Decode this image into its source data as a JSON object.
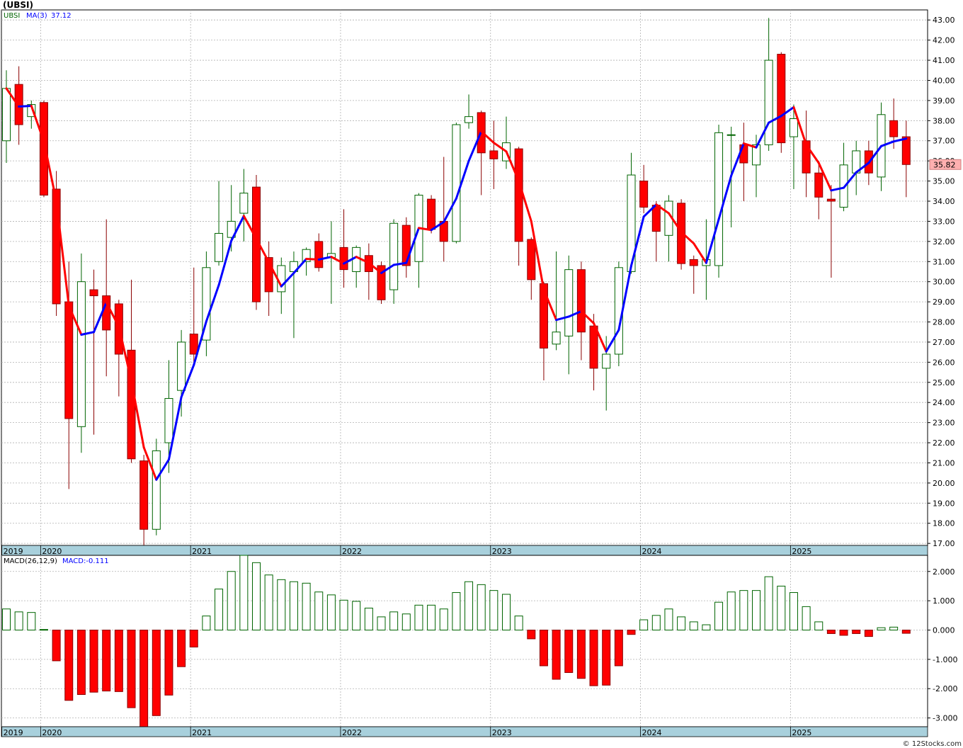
{
  "title": "(UBSI)",
  "footer": "© 12Stocks.com",
  "colors": {
    "up": "#006400",
    "down": "#ff0000",
    "ma_up": "#0000ff",
    "ma_down": "#ff0000",
    "grid": "#b0b0b0",
    "axis_band": "#a8d0dc"
  },
  "chart_data": [
    {
      "type": "candlestick",
      "legend": {
        "symbol": "UBSI",
        "ma_label": "MA(3)",
        "ma_value": "37.12"
      },
      "last_price_label": "35.82",
      "ylim": [
        16.9,
        43.5
      ],
      "y_ticks": [
        17,
        18,
        19,
        20,
        21,
        22,
        23,
        24,
        25,
        26,
        27,
        28,
        29,
        30,
        31,
        32,
        33,
        34,
        35,
        36,
        37,
        38,
        39,
        40,
        41,
        42,
        43
      ],
      "x_year_labels": [
        {
          "label": "2019",
          "index": -0.2
        },
        {
          "label": "2020",
          "index": 2.9
        },
        {
          "label": "2021",
          "index": 14.9
        },
        {
          "label": "2022",
          "index": 26.9
        },
        {
          "label": "2023",
          "index": 38.9
        },
        {
          "label": "2024",
          "index": 50.9
        },
        {
          "label": "2025",
          "index": 62.9
        }
      ],
      "candles": [
        {
          "o": 37.0,
          "h": 40.5,
          "l": 35.9,
          "c": 39.6
        },
        {
          "o": 39.8,
          "h": 40.7,
          "l": 36.8,
          "c": 37.8
        },
        {
          "o": 38.2,
          "h": 39.0,
          "l": 37.6,
          "c": 38.8
        },
        {
          "o": 38.9,
          "h": 39.0,
          "l": 34.2,
          "c": 34.3
        },
        {
          "o": 34.6,
          "h": 35.5,
          "l": 28.3,
          "c": 28.9
        },
        {
          "o": 29.0,
          "h": 31.0,
          "l": 19.7,
          "c": 23.2
        },
        {
          "o": 22.8,
          "h": 31.4,
          "l": 21.5,
          "c": 30.0
        },
        {
          "o": 29.6,
          "h": 30.6,
          "l": 22.4,
          "c": 29.3
        },
        {
          "o": 29.3,
          "h": 33.1,
          "l": 25.3,
          "c": 27.6
        },
        {
          "o": 28.9,
          "h": 29.1,
          "l": 24.3,
          "c": 26.4
        },
        {
          "o": 26.6,
          "h": 30.1,
          "l": 21.0,
          "c": 21.2
        },
        {
          "o": 21.1,
          "h": 21.4,
          "l": 16.9,
          "c": 17.7
        },
        {
          "o": 17.7,
          "h": 22.2,
          "l": 17.4,
          "c": 21.6
        },
        {
          "o": 22.0,
          "h": 26.1,
          "l": 20.5,
          "c": 24.2
        },
        {
          "o": 24.6,
          "h": 27.6,
          "l": 23.3,
          "c": 27.0
        },
        {
          "o": 27.4,
          "h": 30.7,
          "l": 25.9,
          "c": 26.4
        },
        {
          "o": 27.1,
          "h": 31.5,
          "l": 26.3,
          "c": 30.7
        },
        {
          "o": 31.0,
          "h": 35.0,
          "l": 30.8,
          "c": 32.4
        },
        {
          "o": 32.2,
          "h": 34.8,
          "l": 31.5,
          "c": 33.0
        },
        {
          "o": 33.4,
          "h": 35.6,
          "l": 32.0,
          "c": 34.4
        },
        {
          "o": 34.7,
          "h": 35.3,
          "l": 28.6,
          "c": 29.0
        },
        {
          "o": 31.2,
          "h": 32.0,
          "l": 28.3,
          "c": 29.5
        },
        {
          "o": 29.5,
          "h": 31.2,
          "l": 28.4,
          "c": 30.8
        },
        {
          "o": 30.5,
          "h": 31.5,
          "l": 27.2,
          "c": 31.0
        },
        {
          "o": 31.0,
          "h": 31.7,
          "l": 30.3,
          "c": 31.6
        },
        {
          "o": 32.0,
          "h": 32.4,
          "l": 30.5,
          "c": 30.7
        },
        {
          "o": 31.2,
          "h": 33.0,
          "l": 28.9,
          "c": 31.4
        },
        {
          "o": 31.7,
          "h": 33.6,
          "l": 29.7,
          "c": 30.6
        },
        {
          "o": 30.5,
          "h": 31.8,
          "l": 29.7,
          "c": 31.7
        },
        {
          "o": 31.3,
          "h": 31.9,
          "l": 29.1,
          "c": 30.5
        },
        {
          "o": 30.8,
          "h": 31.0,
          "l": 28.9,
          "c": 29.1
        },
        {
          "o": 29.6,
          "h": 33.1,
          "l": 28.9,
          "c": 32.9
        },
        {
          "o": 32.8,
          "h": 33.2,
          "l": 30.2,
          "c": 30.8
        },
        {
          "o": 31.0,
          "h": 34.4,
          "l": 29.7,
          "c": 34.3
        },
        {
          "o": 34.1,
          "h": 34.3,
          "l": 32.4,
          "c": 32.6
        },
        {
          "o": 33.0,
          "h": 36.2,
          "l": 31.0,
          "c": 32.0
        },
        {
          "o": 32.0,
          "h": 37.9,
          "l": 31.9,
          "c": 37.8
        },
        {
          "o": 37.9,
          "h": 39.3,
          "l": 37.6,
          "c": 38.2
        },
        {
          "o": 38.4,
          "h": 38.5,
          "l": 34.3,
          "c": 36.4
        },
        {
          "o": 36.5,
          "h": 38.0,
          "l": 34.6,
          "c": 36.1
        },
        {
          "o": 36.0,
          "h": 38.2,
          "l": 35.6,
          "c": 36.9
        },
        {
          "o": 36.6,
          "h": 36.7,
          "l": 30.8,
          "c": 32.0
        },
        {
          "o": 32.1,
          "h": 32.2,
          "l": 29.1,
          "c": 30.1
        },
        {
          "o": 29.9,
          "h": 30.0,
          "l": 25.1,
          "c": 26.7
        },
        {
          "o": 26.9,
          "h": 31.5,
          "l": 26.6,
          "c": 27.5
        },
        {
          "o": 27.3,
          "h": 31.3,
          "l": 25.4,
          "c": 30.6
        },
        {
          "o": 30.6,
          "h": 31.0,
          "l": 26.1,
          "c": 27.5
        },
        {
          "o": 27.8,
          "h": 28.4,
          "l": 24.6,
          "c": 25.7
        },
        {
          "o": 25.7,
          "h": 27.3,
          "l": 23.6,
          "c": 26.4
        },
        {
          "o": 26.4,
          "h": 31.0,
          "l": 25.8,
          "c": 30.7
        },
        {
          "o": 30.5,
          "h": 36.4,
          "l": 30.4,
          "c": 35.3
        },
        {
          "o": 35.0,
          "h": 35.8,
          "l": 33.4,
          "c": 33.7
        },
        {
          "o": 33.8,
          "h": 34.0,
          "l": 31.0,
          "c": 32.5
        },
        {
          "o": 32.3,
          "h": 34.3,
          "l": 31.0,
          "c": 34.0
        },
        {
          "o": 33.9,
          "h": 34.1,
          "l": 30.6,
          "c": 30.9
        },
        {
          "o": 31.1,
          "h": 31.3,
          "l": 29.4,
          "c": 30.8
        },
        {
          "o": 30.8,
          "h": 33.1,
          "l": 29.1,
          "c": 31.1
        },
        {
          "o": 30.8,
          "h": 37.8,
          "l": 30.2,
          "c": 37.4
        },
        {
          "o": 37.3,
          "h": 37.7,
          "l": 32.7,
          "c": 37.3
        },
        {
          "o": 36.8,
          "h": 37.9,
          "l": 34.0,
          "c": 35.9
        },
        {
          "o": 35.8,
          "h": 37.3,
          "l": 34.2,
          "c": 36.8
        },
        {
          "o": 36.8,
          "h": 43.1,
          "l": 36.5,
          "c": 41.0
        },
        {
          "o": 41.3,
          "h": 41.4,
          "l": 36.4,
          "c": 36.9
        },
        {
          "o": 37.2,
          "h": 38.8,
          "l": 34.6,
          "c": 38.1
        },
        {
          "o": 37.0,
          "h": 38.5,
          "l": 34.2,
          "c": 35.4
        },
        {
          "o": 35.4,
          "h": 36.0,
          "l": 33.1,
          "c": 34.2
        },
        {
          "o": 34.1,
          "h": 34.8,
          "l": 30.2,
          "c": 34.0
        },
        {
          "o": 33.7,
          "h": 36.9,
          "l": 33.5,
          "c": 35.8
        },
        {
          "o": 35.4,
          "h": 37.0,
          "l": 34.3,
          "c": 36.5
        },
        {
          "o": 36.5,
          "h": 37.0,
          "l": 34.8,
          "c": 35.4
        },
        {
          "o": 35.2,
          "h": 38.9,
          "l": 34.5,
          "c": 38.3
        },
        {
          "o": 38.0,
          "h": 39.1,
          "l": 36.6,
          "c": 37.2
        },
        {
          "o": 37.2,
          "h": 38.0,
          "l": 34.2,
          "c": 35.82
        }
      ]
    },
    {
      "type": "bar",
      "legend": {
        "label": "MACD(26,12,9)",
        "value_label": "MACD:-0.111"
      },
      "ylim": [
        -3.3,
        2.55
      ],
      "y_ticks": [
        -3,
        -2,
        -1,
        0,
        1,
        2
      ],
      "y_tick_labels": [
        "-3.000",
        "-2.000",
        "-1.000",
        "0.000",
        "1.000",
        "2.000"
      ],
      "values": [
        0.72,
        0.62,
        0.6,
        0.02,
        -1.05,
        -2.4,
        -2.2,
        -2.12,
        -2.08,
        -2.1,
        -2.65,
        -3.3,
        -2.92,
        -2.22,
        -1.25,
        -0.58,
        0.48,
        1.4,
        2.0,
        2.55,
        2.3,
        1.88,
        1.72,
        1.65,
        1.6,
        1.3,
        1.2,
        1.02,
        0.98,
        0.75,
        0.45,
        0.62,
        0.55,
        0.85,
        0.85,
        0.72,
        1.28,
        1.65,
        1.55,
        1.35,
        1.22,
        0.48,
        -0.3,
        -1.22,
        -1.68,
        -1.45,
        -1.65,
        -1.9,
        -1.88,
        -1.22,
        -0.15,
        0.35,
        0.5,
        0.72,
        0.45,
        0.28,
        0.18,
        0.95,
        1.3,
        1.35,
        1.35,
        1.82,
        1.5,
        1.28,
        0.8,
        0.28,
        -0.12,
        -0.18,
        -0.12,
        -0.22,
        0.08,
        0.1,
        -0.111
      ]
    }
  ]
}
